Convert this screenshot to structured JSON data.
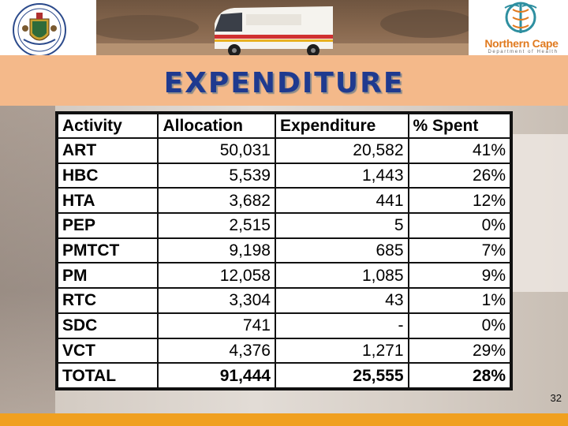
{
  "header": {
    "brand_name": "Northern Cape",
    "brand_subtitle": "Department of Health",
    "photo_label": "ambulance-photo"
  },
  "slide": {
    "title": "EXPENDITURE",
    "page_number": "32"
  },
  "table": {
    "columns": [
      "Activity",
      "Allocation",
      "Expenditure",
      "% Spent"
    ],
    "rows": [
      {
        "activity": "ART",
        "allocation": "50,031",
        "expenditure": "20,582",
        "spent": "41%"
      },
      {
        "activity": "HBC",
        "allocation": "5,539",
        "expenditure": "1,443",
        "spent": "26%"
      },
      {
        "activity": "HTA",
        "allocation": "3,682",
        "expenditure": "441",
        "spent": "12%"
      },
      {
        "activity": "PEP",
        "allocation": "2,515",
        "expenditure": "5",
        "spent": "0%"
      },
      {
        "activity": "PMTCT",
        "allocation": "9,198",
        "expenditure": "685",
        "spent": "7%"
      },
      {
        "activity": "PM",
        "allocation": "12,058",
        "expenditure": "1,085",
        "spent": "9%"
      },
      {
        "activity": "RTC",
        "allocation": "3,304",
        "expenditure": "43",
        "spent": "1%"
      },
      {
        "activity": "SDC",
        "allocation": "741",
        "expenditure": "-",
        "spent": "0%"
      },
      {
        "activity": "VCT",
        "allocation": "4,376",
        "expenditure": "1,271",
        "spent": "29%"
      }
    ],
    "total": {
      "activity": "TOTAL",
      "allocation": "91,444",
      "expenditure": "25,555",
      "spent": "28%"
    }
  },
  "colors": {
    "title": "#1f3a8f",
    "title_band": "#f4b98a",
    "brand": "#e07a1f",
    "bottom_bar": "#f0a020"
  }
}
